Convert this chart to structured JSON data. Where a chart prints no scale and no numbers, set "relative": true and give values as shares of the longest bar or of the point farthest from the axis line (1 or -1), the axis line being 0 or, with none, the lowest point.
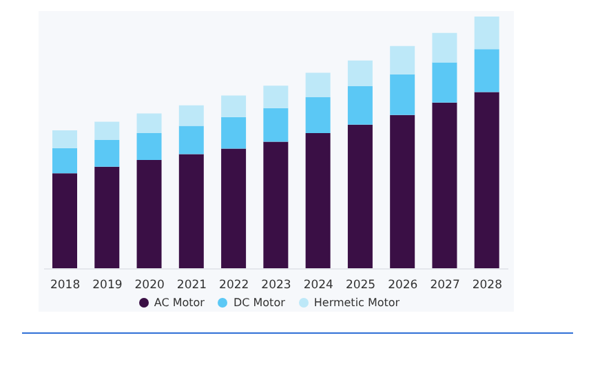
{
  "chart_data": {
    "type": "bar",
    "stacked": true,
    "relative": true,
    "legend": "bottom",
    "categories": [
      "2018",
      "2019",
      "2020",
      "2021",
      "2022",
      "2023",
      "2024",
      "2025",
      "2026",
      "2027",
      "2028"
    ],
    "series": [
      {
        "name": "AC Motor",
        "color": "#3a0f45",
        "values": [
          0.379,
          0.405,
          0.432,
          0.455,
          0.477,
          0.504,
          0.538,
          0.572,
          0.61,
          0.659,
          0.701
        ]
      },
      {
        "name": "DC Motor",
        "color": "#5bc8f5",
        "values": [
          0.1,
          0.106,
          0.106,
          0.112,
          0.125,
          0.133,
          0.142,
          0.152,
          0.161,
          0.159,
          0.17
        ]
      },
      {
        "name": "Hermetic Motor",
        "color": "#bde8f8",
        "values": [
          0.07,
          0.072,
          0.078,
          0.081,
          0.085,
          0.089,
          0.097,
          0.102,
          0.112,
          0.117,
          0.129
        ]
      }
    ]
  }
}
